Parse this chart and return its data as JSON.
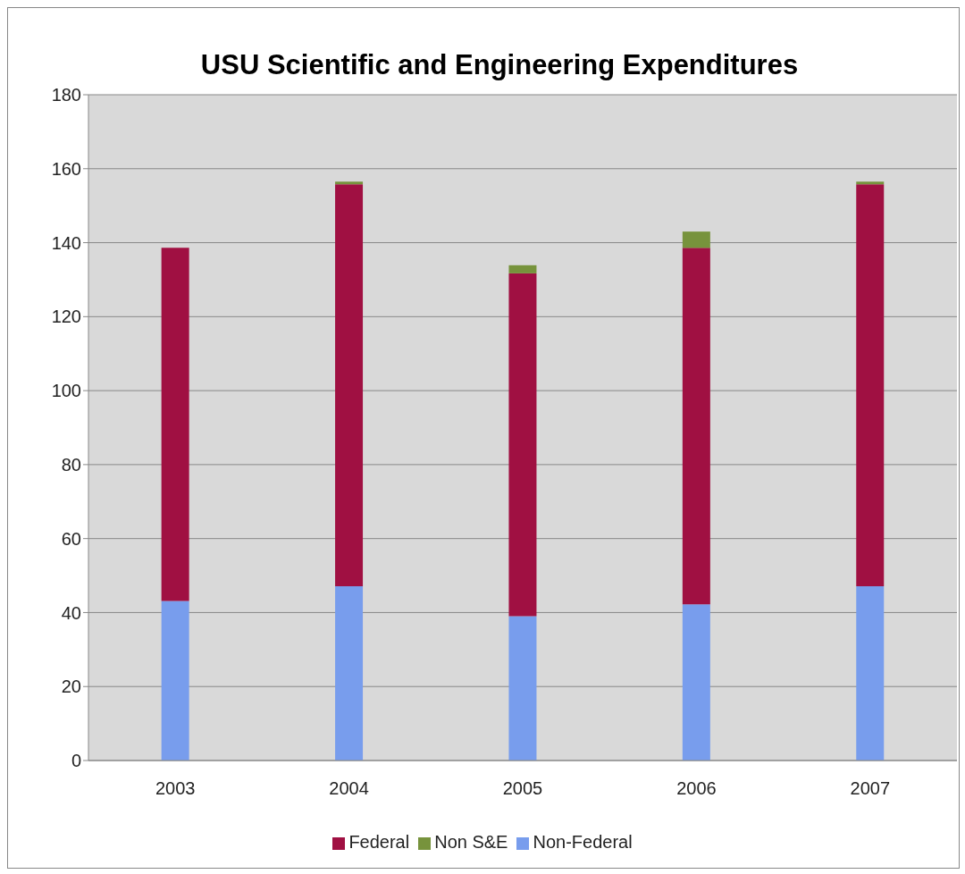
{
  "chart_data": {
    "type": "bar",
    "title": "USU Scientific and Engineering Expenditures",
    "categories": [
      "2003",
      "2004",
      "2005",
      "2006",
      "2007"
    ],
    "stacked": true,
    "series": [
      {
        "name": "Non-Federal",
        "color": "#789ded",
        "values": [
          43.1,
          47.1,
          39,
          42.2,
          47.1
        ]
      },
      {
        "name": "Federal",
        "color": "#a01042",
        "values": [
          95.5,
          108.7,
          92.7,
          96.4,
          108.7
        ]
      },
      {
        "name": "Non S&E",
        "color": "#77933c",
        "values": [
          0,
          0.7,
          2.2,
          4.4,
          0.7
        ]
      }
    ],
    "ylim": [
      0,
      180
    ],
    "yticks": [
      0,
      20,
      40,
      60,
      80,
      100,
      120,
      140,
      160,
      180
    ],
    "grid": "y",
    "legend": "bottom"
  }
}
